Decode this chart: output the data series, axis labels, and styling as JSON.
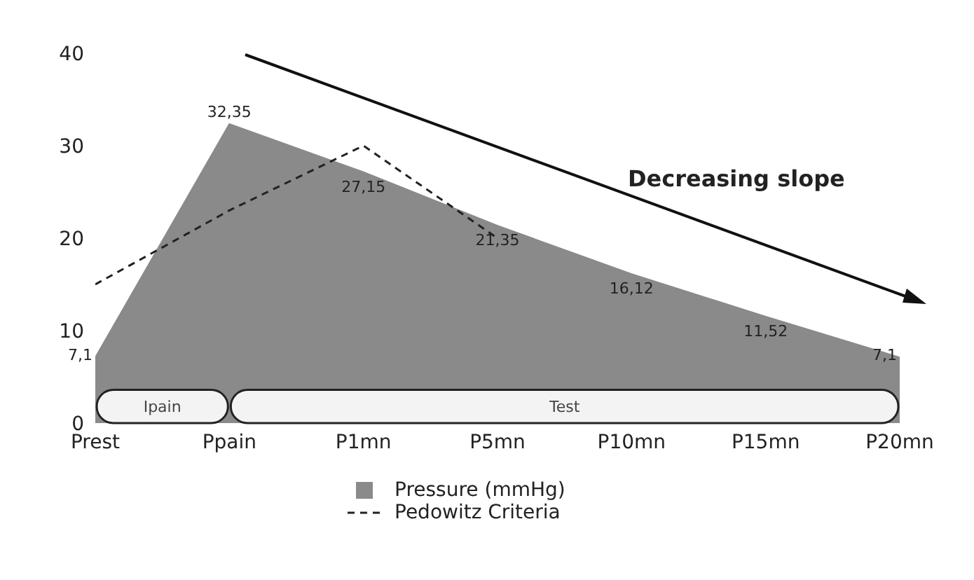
{
  "chart_data": {
    "type": "area",
    "categories": [
      "Prest",
      "Ppain",
      "P1mn",
      "P5mn",
      "P10mn",
      "P15mn",
      "P20mn"
    ],
    "series": [
      {
        "name": "Pressure (mmHg)",
        "type": "area",
        "color": "#8a8a8a",
        "values": [
          7.1,
          32.35,
          27.15,
          21.35,
          16.12,
          11.52,
          7.1
        ],
        "value_labels": [
          "7,1",
          "32,35",
          "27,15",
          "21,35",
          "16,12",
          "11,52",
          "7,1"
        ]
      },
      {
        "name": "Pedowitz Criteria",
        "type": "line",
        "color": "#222222",
        "line_style": "dashed",
        "values": [
          15,
          23,
          30,
          20,
          null,
          null,
          null
        ]
      }
    ],
    "ylim": [
      0,
      40
    ],
    "yticks": [
      0,
      10,
      20,
      30,
      40
    ],
    "grid": false,
    "legend": "bottom",
    "bands": [
      {
        "axis": "x",
        "from": "Prest",
        "to": "Ppain",
        "label": "Ipain"
      },
      {
        "axis": "x",
        "from": "Ppain",
        "to": "P20mn",
        "label": "Test"
      }
    ],
    "annotations": [
      "Decreasing slope"
    ]
  }
}
